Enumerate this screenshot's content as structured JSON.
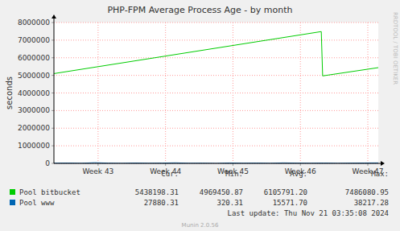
{
  "chart_data": {
    "type": "line",
    "title": "PHP-FPM Average Process Age - by month",
    "y_label": "seconds",
    "xlim": [
      42.345,
      47.155
    ],
    "xticks": [
      {
        "value": 43,
        "label": "Week 43"
      },
      {
        "value": 44,
        "label": "Week 44"
      },
      {
        "value": 45,
        "label": "Week 45"
      },
      {
        "value": 46,
        "label": "Week 46"
      },
      {
        "value": 47,
        "label": "Week 47"
      }
    ],
    "ylim": [
      0,
      8000000
    ],
    "yticks": [
      0,
      1000000,
      2000000,
      3000000,
      4000000,
      5000000,
      6000000,
      7000000,
      8000000
    ],
    "grid": true,
    "stat_labels": [
      "Cur:",
      "Min:",
      "Avg:",
      "Max:"
    ],
    "series": [
      {
        "name": "Pool bitbucket",
        "color": "#00cc00",
        "x": [
          42.345,
          46.31,
          46.33,
          47.155
        ],
        "values": [
          5100000,
          7486080.95,
          4969450.87,
          5438198.31
        ],
        "stats": {
          "cur": 5438198.31,
          "min": 4969450.87,
          "avg": 6105791.2,
          "max": 7486080.95
        }
      },
      {
        "name": "Pool www",
        "color": "#0066b3",
        "x": [
          42.345,
          42.55,
          42.75,
          42.95,
          43.15,
          43.35,
          43.55,
          43.75,
          43.95,
          44.15,
          44.35,
          44.55,
          44.75,
          44.95,
          45.15,
          45.35,
          45.55,
          45.75,
          45.95,
          46.15,
          46.35,
          46.55,
          46.75,
          46.95,
          47.155
        ],
        "values": [
          12000,
          20000,
          8000,
          38217.28,
          15000,
          5000,
          22000,
          10000,
          18000,
          30000,
          9000,
          14000,
          320.31,
          25000,
          12000,
          19000,
          7000,
          28000,
          16000,
          11000,
          21000,
          6000,
          17000,
          24000,
          27880.31
        ],
        "stats": {
          "cur": 27880.31,
          "min": 320.31,
          "avg": 15571.7,
          "max": 38217.28
        }
      }
    ],
    "last_update": "Last update: Thu Nov 21 03:35:08 2024",
    "side_text": "RRDTOOL / TOBI OETIKER",
    "footer": "Munin 2.0.56"
  }
}
